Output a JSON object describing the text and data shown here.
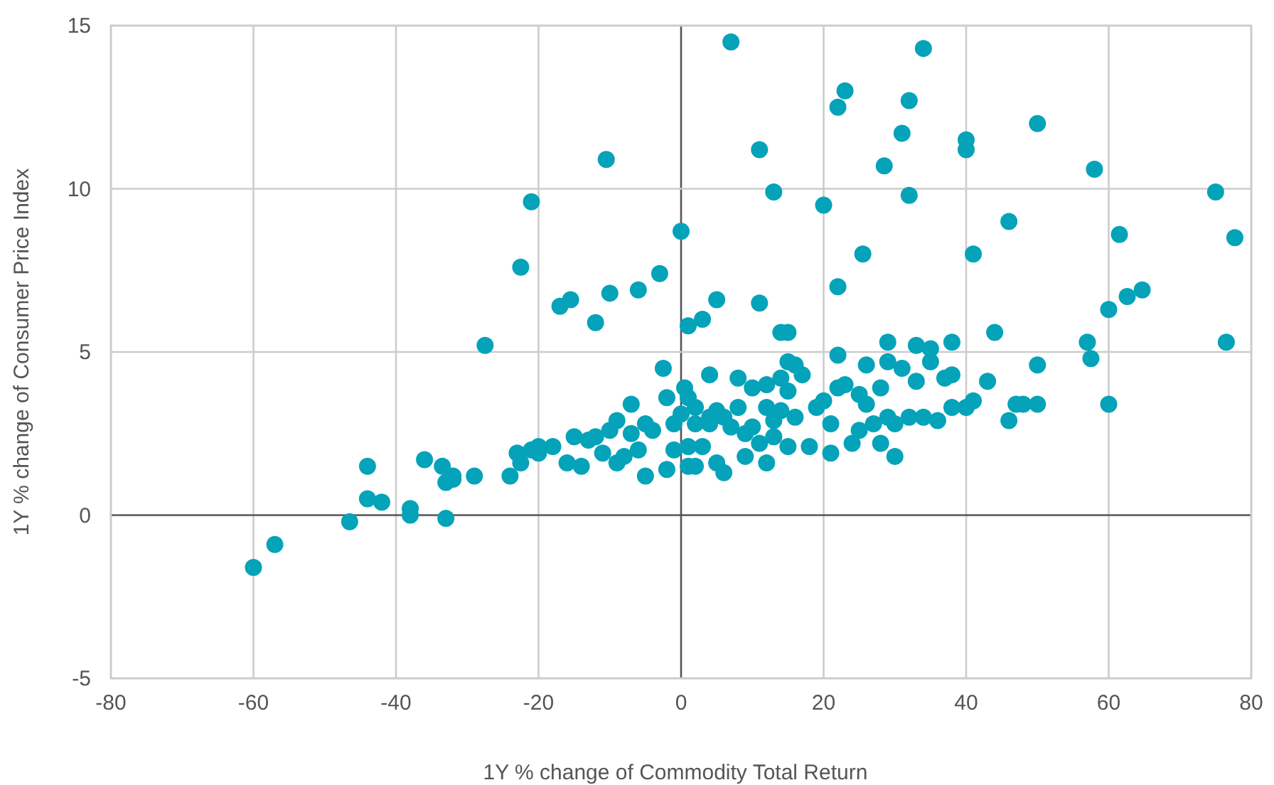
{
  "chart_data": {
    "type": "scatter",
    "xlabel": "1Y % change of Commodity Total Return",
    "ylabel": "1Y % change of Consumer Price Index",
    "xlim": [
      -80,
      80
    ],
    "xticks": [
      -80,
      -60,
      -40,
      -20,
      0,
      20,
      40,
      60,
      80
    ],
    "ylim": [
      -5,
      15
    ],
    "yticks": [
      -5,
      0,
      5,
      10,
      15
    ],
    "grid": true,
    "marker": "circle",
    "series": [
      {
        "color": "#04a3b9",
        "x": [
          -60,
          -57,
          -46.5,
          -44,
          -44,
          -42,
          -38,
          -38,
          -36,
          -33.5,
          -33,
          -33,
          -32,
          -32,
          -29,
          -27.5,
          -24,
          -23,
          -22.5,
          -22.5,
          -21,
          -20,
          -21,
          -20,
          -18,
          -17,
          -16,
          -15.5,
          -15,
          -14,
          -13,
          -12,
          -12,
          -11,
          -10.5,
          -10,
          -10,
          -9,
          -9,
          -8,
          -7,
          -7,
          -6,
          -6,
          -5,
          -5,
          -4,
          -3,
          -2.5,
          -2,
          -2,
          -1,
          -1,
          0,
          0,
          0.5,
          1,
          1,
          1,
          1,
          2,
          2,
          2,
          3,
          3,
          4,
          4,
          4,
          5,
          5,
          5,
          6,
          6,
          7,
          7,
          8,
          8,
          9,
          9,
          10,
          10,
          11,
          11,
          11,
          12,
          12,
          12,
          13,
          13,
          13,
          14,
          14,
          14,
          15,
          15,
          15,
          15,
          16,
          16,
          17,
          18,
          19,
          20,
          20,
          21,
          21,
          22,
          22,
          22,
          22,
          23,
          23,
          24,
          25,
          25,
          25.5,
          26,
          26,
          27,
          28,
          28,
          28.5,
          29,
          29,
          29,
          30,
          30,
          31,
          31,
          32,
          32,
          32,
          33,
          33,
          34,
          34,
          35,
          35,
          36,
          37,
          38,
          38,
          38,
          40,
          40,
          40,
          41,
          41,
          43,
          44,
          46,
          46,
          47,
          48,
          50,
          50,
          50,
          57,
          57.5,
          58,
          60,
          60,
          61.5,
          62.6,
          64.7,
          75,
          76.5,
          77.7
        ],
        "values": [
          -1.6,
          -0.9,
          -0.2,
          1.5,
          0.5,
          0.4,
          0.2,
          0,
          1.7,
          1.5,
          -0.1,
          1.0,
          1.2,
          1.1,
          1.2,
          5.2,
          1.2,
          1.9,
          7.6,
          1.6,
          2.0,
          2.1,
          9.6,
          1.9,
          2.1,
          6.4,
          1.6,
          6.6,
          2.4,
          1.5,
          2.3,
          5.9,
          2.4,
          1.9,
          10.9,
          6.8,
          2.6,
          2.9,
          1.6,
          1.8,
          2.5,
          3.4,
          6.9,
          2.0,
          2.8,
          1.2,
          2.6,
          7.4,
          4.5,
          3.6,
          1.4,
          2.8,
          2.0,
          3.1,
          8.7,
          3.9,
          5.8,
          3.6,
          2.1,
          1.5,
          3.3,
          2.8,
          1.5,
          6.0,
          2.1,
          3.0,
          4.3,
          2.8,
          6.6,
          3.2,
          1.6,
          1.3,
          3.0,
          14.5,
          2.7,
          4.2,
          3.3,
          2.5,
          1.8,
          3.9,
          2.7,
          6.5,
          11.2,
          2.2,
          4.0,
          3.3,
          1.6,
          9.9,
          2.9,
          2.4,
          5.6,
          4.2,
          3.2,
          5.6,
          4.7,
          3.8,
          2.1,
          4.6,
          3.0,
          4.3,
          2.1,
          3.3,
          9.5,
          3.5,
          2.8,
          1.9,
          12.5,
          4.9,
          3.9,
          7.0,
          13.0,
          4.0,
          2.2,
          3.7,
          2.6,
          8.0,
          4.6,
          3.4,
          2.8,
          3.9,
          2.2,
          10.7,
          4.7,
          3.0,
          5.3,
          1.8,
          2.8,
          11.7,
          4.5,
          9.8,
          12.7,
          3.0,
          4.1,
          5.2,
          14.3,
          3.0,
          5.1,
          4.7,
          2.9,
          4.2,
          4.3,
          5.3,
          3.3,
          11.2,
          11.5,
          3.3,
          3.5,
          8.0,
          4.1,
          5.6,
          9.0,
          2.9,
          3.4,
          3.4,
          12.0,
          4.6,
          3.4,
          5.3,
          4.8,
          10.6,
          6.3,
          3.4,
          8.6,
          6.7,
          6.9,
          9.9,
          5.3,
          8.5
        ]
      }
    ]
  }
}
